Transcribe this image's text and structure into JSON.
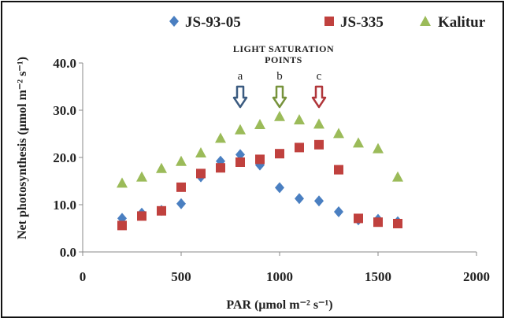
{
  "chart_data": {
    "type": "scatter",
    "title": "",
    "xlabel": "PAR (μmol m⁻² s⁻¹)",
    "ylabel": "Net photosynthesis (μmol m⁻² s⁻¹)",
    "xlim": [
      0,
      2000
    ],
    "ylim": [
      0,
      40
    ],
    "xticks": [
      "0",
      "500",
      "1000",
      "1500",
      "2000"
    ],
    "yticks": [
      "0.0",
      "10.0",
      "20.0",
      "30.0",
      "40.0"
    ],
    "grid": false,
    "legend_position": "top-right",
    "series": [
      {
        "name": "JS-93-05",
        "marker": "diamond",
        "color": "#4a7fc1",
        "x": [
          200,
          300,
          400,
          500,
          600,
          700,
          800,
          900,
          1000,
          1100,
          1200,
          1300,
          1400,
          1500,
          1600
        ],
        "y": [
          7.1,
          8.2,
          8.8,
          10.2,
          15.9,
          19.2,
          20.6,
          18.4,
          13.6,
          11.3,
          10.8,
          8.5,
          6.8,
          6.9,
          6.4
        ]
      },
      {
        "name": "JS-335",
        "marker": "square",
        "color": "#c0413e",
        "x": [
          200,
          300,
          400,
          500,
          600,
          700,
          800,
          900,
          1000,
          1100,
          1200,
          1300,
          1400,
          1500,
          1600
        ],
        "y": [
          5.6,
          7.6,
          8.7,
          13.7,
          16.6,
          17.8,
          19.0,
          19.6,
          20.8,
          22.1,
          22.7,
          17.4,
          7.1,
          6.3,
          6.0
        ]
      },
      {
        "name": "Kalitur",
        "marker": "triangle",
        "color": "#9bbb59",
        "x": [
          200,
          300,
          400,
          500,
          600,
          700,
          800,
          900,
          1000,
          1100,
          1200,
          1300,
          1400,
          1500,
          1600
        ],
        "y": [
          14.6,
          15.9,
          17.7,
          19.2,
          21.0,
          24.1,
          25.9,
          27.0,
          28.7,
          28.0,
          27.1,
          25.1,
          23.1,
          21.9,
          15.9
        ]
      }
    ],
    "annotations": {
      "heading_line1": "LIGHT SATURATION",
      "heading_line2": "POINTS",
      "arrows": [
        {
          "letter": "a",
          "x": 800,
          "color": "#3b5b80"
        },
        {
          "letter": "b",
          "x": 1000,
          "color": "#77933c"
        },
        {
          "letter": "c",
          "x": 1200,
          "color": "#b0363a"
        }
      ]
    }
  }
}
